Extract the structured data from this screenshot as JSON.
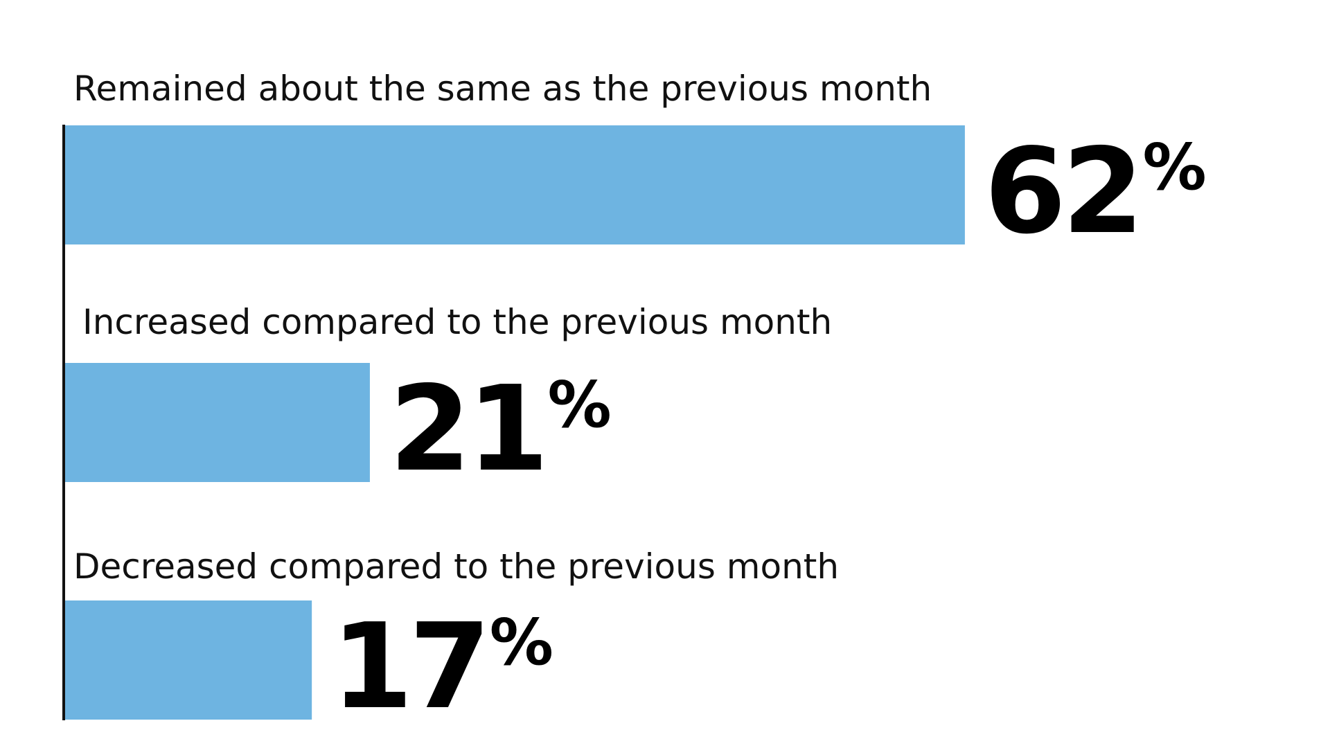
{
  "chart_data": {
    "type": "bar",
    "orientation": "horizontal",
    "categories": [
      "Remained about the same as the previous month",
      "Increased compared to the previous month",
      "Decreased compared to the previous month"
    ],
    "values": [
      62,
      21,
      17
    ],
    "value_labels": [
      "62",
      "21",
      "17"
    ],
    "unit": "%",
    "title": "",
    "xlabel": "",
    "ylabel": "",
    "xlim": [
      0,
      100
    ],
    "grid": false,
    "legend": "none",
    "colors": {
      "bar": "#6eb4e1",
      "axis": "#111111",
      "label": "#111111",
      "value": "#000000"
    }
  }
}
